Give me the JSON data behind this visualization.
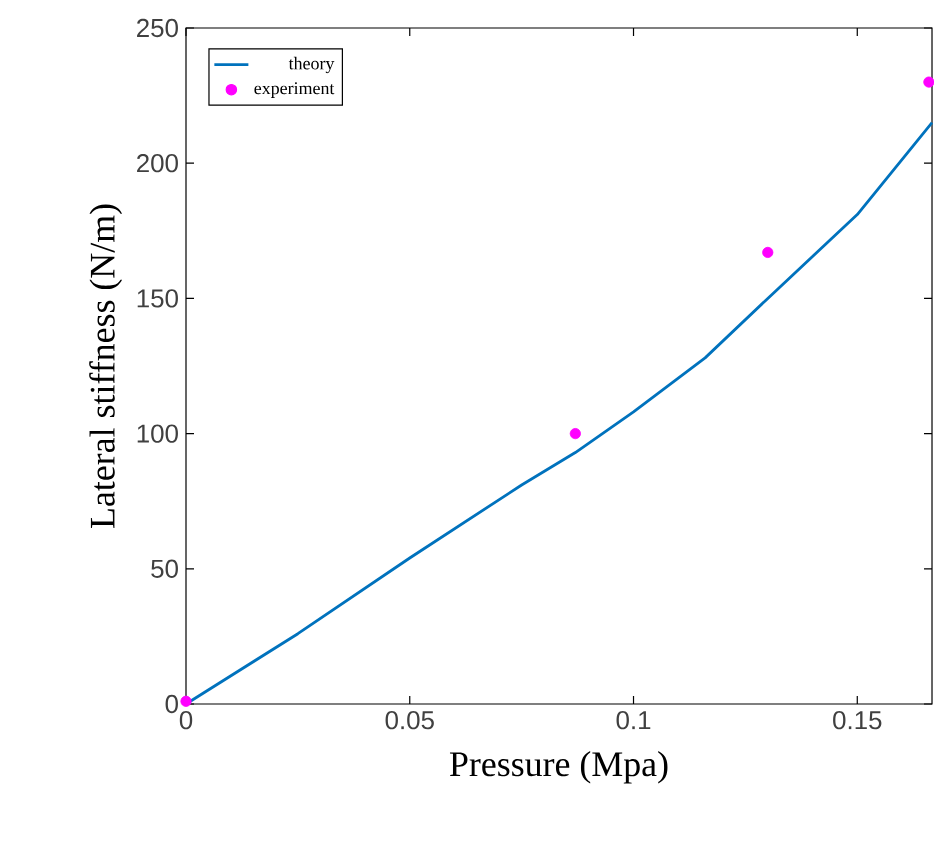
{
  "chart_data": {
    "type": "line",
    "xlabel": "Pressure (Mpa)",
    "ylabel": "Lateral stiffness (N/m)",
    "xlim": [
      0,
      0.1667
    ],
    "ylim": [
      0,
      250
    ],
    "xticks": [
      0,
      0.05,
      0.1,
      0.15
    ],
    "yticks": [
      0,
      50,
      100,
      150,
      200,
      250
    ],
    "legend": "top left",
    "grid": false,
    "series": [
      {
        "name": "theory",
        "color": "#0072bd",
        "marker": "none",
        "line_style": "solid",
        "x": [
          0,
          0.025,
          0.05,
          0.075,
          0.087,
          0.1,
          0.116,
          0.13,
          0.15,
          0.1667
        ],
        "values": [
          0,
          26,
          54,
          81,
          93,
          108,
          128,
          150,
          181,
          215
        ]
      },
      {
        "name": "experiment",
        "type": "scatter",
        "color": "#ff00ff",
        "marker": "circle",
        "x": [
          0,
          0.087,
          0.13,
          0.166
        ],
        "values": [
          1,
          100,
          167,
          230
        ]
      }
    ]
  }
}
